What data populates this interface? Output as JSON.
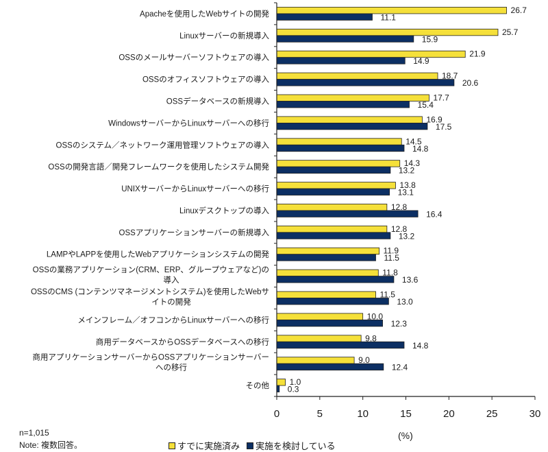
{
  "chart_data": {
    "type": "bar",
    "orientation": "horizontal",
    "title": "",
    "xlabel": "(%)",
    "ylabel": "",
    "xlim": [
      0,
      30
    ],
    "xticks": [
      0,
      5,
      10,
      15,
      20,
      25,
      30
    ],
    "grid": false,
    "legend_position": "bottom",
    "categories": [
      [
        "Apacheを使用したWebサイトの開発"
      ],
      [
        "Linuxサーバーの新規導入"
      ],
      [
        "OSSのメールサーバーソフトウェアの導入"
      ],
      [
        "OSSのオフィスソフトウェアの導入"
      ],
      [
        "OSSデータベースの新規導入"
      ],
      [
        "WindowsサーバーからLinuxサーバーへの移行"
      ],
      [
        "OSSのシステム／ネットワーク運用管理ソフトウェアの導入"
      ],
      [
        "OSSの開発言語／開発フレームワークを使用したシステム開発"
      ],
      [
        "UNIXサーバーからLinuxサーバーへの移行"
      ],
      [
        "Linuxデスクトップの導入"
      ],
      [
        "OSSアプリケーションサーバーの新規導入"
      ],
      [
        "LAMPやLAPPを使用したWebアプリケーションシステムの開発"
      ],
      [
        "OSSの業務アプリケーション(CRM、ERP、グループウェアなど)の",
        "導入"
      ],
      [
        "OSSのCMS (コンテンツマネージメントシステム)を使用したWebサ",
        "イトの開発"
      ],
      [
        "メインフレーム／オフコンからLinuxサーバーへの移行"
      ],
      [
        "商用データベースからOSSデータベースへの移行"
      ],
      [
        "商用アプリケーションサーバーからOSSアプリケーションサーバー",
        "への移行"
      ],
      [
        "その他"
      ]
    ],
    "series": [
      {
        "name": "すでに実施済み",
        "color": "#f5e03a",
        "values": [
          26.7,
          25.7,
          21.9,
          18.7,
          17.7,
          16.9,
          14.5,
          14.3,
          13.8,
          12.8,
          12.8,
          11.9,
          11.8,
          11.5,
          10.0,
          9.8,
          9.0,
          1.0
        ]
      },
      {
        "name": "実施を検討している",
        "color": "#0c2f63",
        "values": [
          11.1,
          15.9,
          14.9,
          20.6,
          15.4,
          17.5,
          14.8,
          13.2,
          13.1,
          16.4,
          13.2,
          11.5,
          13.6,
          13.0,
          12.3,
          14.8,
          12.4,
          0.3
        ]
      }
    ]
  },
  "notes": {
    "n": "n=1,015",
    "note": "Note: 複数回答。"
  },
  "legend": {
    "item0": "すでに実施済み",
    "item1": "実施を検討している"
  },
  "axis": {
    "unit_label": "(%)"
  }
}
